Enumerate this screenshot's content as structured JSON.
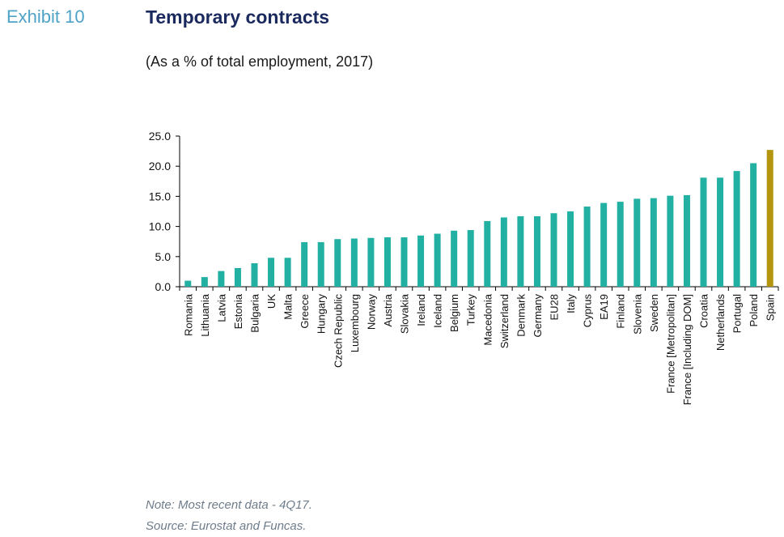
{
  "header": {
    "exhibit": "Exhibit 10",
    "title": "Temporary contracts",
    "subtitle": "(As a % of total employment, 2017)"
  },
  "footer": {
    "note": "Note: Most recent data - 4Q17.",
    "source": "Source: Eurostat and Funcas."
  },
  "colors": {
    "bar": "#21b0a2",
    "highlight": "#b5950f",
    "axis": "#000000"
  },
  "chart_data": {
    "type": "bar",
    "categories": [
      "Romania",
      "Lithuania",
      "Latvia",
      "Estonia",
      "Bulgaria",
      "UK",
      "Malta",
      "Greece",
      "Hungary",
      "Czech Republic",
      "Luxembourg",
      "Norway",
      "Austria",
      "Slovakia",
      "Ireland",
      "Iceland",
      "Belgium",
      "Turkey",
      "Macedonia",
      "Switzerland",
      "Denmark",
      "Germany",
      "EU28",
      "Italy",
      "Cyprus",
      "EA19",
      "Finland",
      "Slovenia",
      "Sweden",
      "France [Metropolitan]",
      "France [Including DOM]",
      "Croatia",
      "Netherlands",
      "Portugal",
      "Poland",
      "Spain"
    ],
    "values": [
      1.0,
      1.6,
      2.6,
      3.1,
      3.9,
      4.8,
      4.8,
      7.4,
      7.4,
      7.9,
      8.0,
      8.1,
      8.2,
      8.2,
      8.5,
      8.8,
      9.3,
      9.4,
      10.9,
      11.5,
      11.7,
      11.7,
      12.2,
      12.5,
      13.3,
      13.9,
      14.1,
      14.6,
      14.7,
      15.1,
      15.2,
      18.1,
      18.1,
      19.2,
      20.5,
      22.7
    ],
    "highlight": "Spain",
    "yticks": [
      "0.0",
      "5.0",
      "10.0",
      "15.0",
      "20.0",
      "25.0"
    ],
    "ylim": [
      0,
      25
    ],
    "grid": false,
    "legend": "none"
  }
}
